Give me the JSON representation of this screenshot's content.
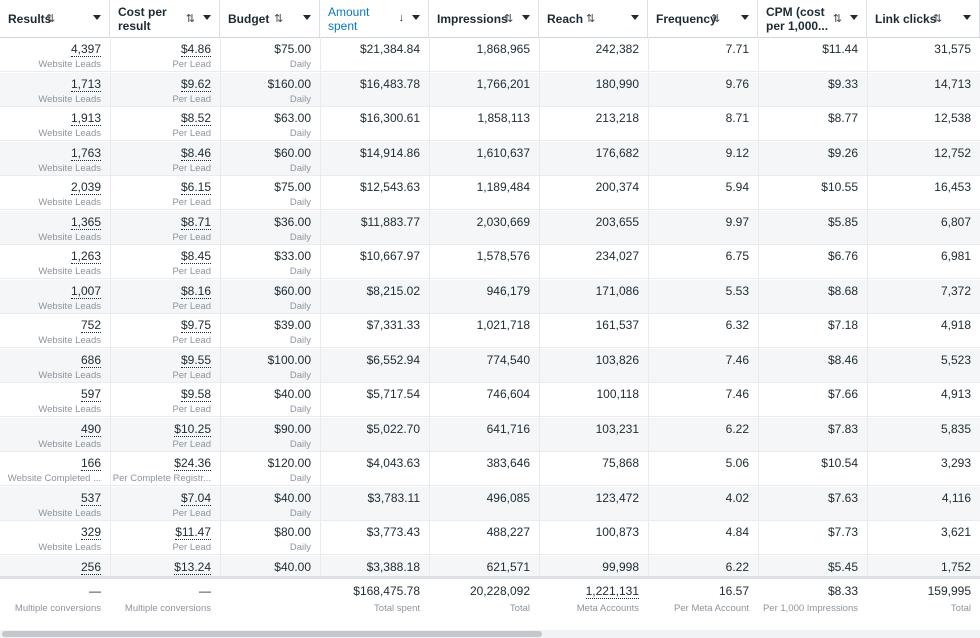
{
  "columns": [
    {
      "key": "results",
      "label": "Results",
      "sort": "⇅",
      "caret": true,
      "active": false
    },
    {
      "key": "cpr",
      "label": "Cost per result",
      "sort": "⇅",
      "caret": true,
      "active": false
    },
    {
      "key": "budget",
      "label": "Budget",
      "sort": "⇅",
      "caret": true,
      "active": false
    },
    {
      "key": "amount",
      "label": "Amount spent",
      "sort": "↓",
      "caret": true,
      "active": true
    },
    {
      "key": "impr",
      "label": "Impressions",
      "sort": "⇅",
      "caret": true,
      "active": false
    },
    {
      "key": "reach",
      "label": "Reach",
      "sort": "⇅",
      "caret": true,
      "active": false
    },
    {
      "key": "freq",
      "label": "Frequency",
      "sort": "⇅",
      "caret": true,
      "active": false
    },
    {
      "key": "cpm",
      "label": "CPM (cost per 1,000...",
      "sort": "⇅",
      "caret": true,
      "active": false
    },
    {
      "key": "clicks",
      "label": "Link clicks",
      "sort": "⇅",
      "caret": true,
      "active": false
    }
  ],
  "rows": [
    {
      "results": "4,397",
      "results_sub": "Website Leads",
      "cpr": "$4.86",
      "cpr_sub": "Per Lead",
      "budget": "$75.00",
      "budget_sub": "Daily",
      "amount": "$21,384.84",
      "impr": "1,868,965",
      "reach": "242,382",
      "freq": "7.71",
      "cpm": "$11.44",
      "clicks": "31,575"
    },
    {
      "results": "1,713",
      "results_sub": "Website Leads",
      "cpr": "$9.62",
      "cpr_sub": "Per Lead",
      "budget": "$160.00",
      "budget_sub": "Daily",
      "amount": "$16,483.78",
      "impr": "1,766,201",
      "reach": "180,990",
      "freq": "9.76",
      "cpm": "$9.33",
      "clicks": "14,713"
    },
    {
      "results": "1,913",
      "results_sub": "Website Leads",
      "cpr": "$8.52",
      "cpr_sub": "Per Lead",
      "budget": "$63.00",
      "budget_sub": "Daily",
      "amount": "$16,300.61",
      "impr": "1,858,113",
      "reach": "213,218",
      "freq": "8.71",
      "cpm": "$8.77",
      "clicks": "12,538"
    },
    {
      "results": "1,763",
      "results_sub": "Website Leads",
      "cpr": "$8.46",
      "cpr_sub": "Per Lead",
      "budget": "$60.00",
      "budget_sub": "Daily",
      "amount": "$14,914.86",
      "impr": "1,610,637",
      "reach": "176,682",
      "freq": "9.12",
      "cpm": "$9.26",
      "clicks": "12,752"
    },
    {
      "results": "2,039",
      "results_sub": "Website Leads",
      "cpr": "$6.15",
      "cpr_sub": "Per Lead",
      "budget": "$75.00",
      "budget_sub": "Daily",
      "amount": "$12,543.63",
      "impr": "1,189,484",
      "reach": "200,374",
      "freq": "5.94",
      "cpm": "$10.55",
      "clicks": "16,453"
    },
    {
      "results": "1,365",
      "results_sub": "Website Leads",
      "cpr": "$8.71",
      "cpr_sub": "Per Lead",
      "budget": "$36.00",
      "budget_sub": "Daily",
      "amount": "$11,883.77",
      "impr": "2,030,669",
      "reach": "203,655",
      "freq": "9.97",
      "cpm": "$5.85",
      "clicks": "6,807"
    },
    {
      "results": "1,263",
      "results_sub": "Website Leads",
      "cpr": "$8.45",
      "cpr_sub": "Per Lead",
      "budget": "$33.00",
      "budget_sub": "Daily",
      "amount": "$10,667.97",
      "impr": "1,578,576",
      "reach": "234,027",
      "freq": "6.75",
      "cpm": "$6.76",
      "clicks": "6,981"
    },
    {
      "results": "1,007",
      "results_sub": "Website Leads",
      "cpr": "$8.16",
      "cpr_sub": "Per Lead",
      "budget": "$60.00",
      "budget_sub": "Daily",
      "amount": "$8,215.02",
      "impr": "946,179",
      "reach": "171,086",
      "freq": "5.53",
      "cpm": "$8.68",
      "clicks": "7,372"
    },
    {
      "results": "752",
      "results_sub": "Website Leads",
      "cpr": "$9.75",
      "cpr_sub": "Per Lead",
      "budget": "$39.00",
      "budget_sub": "Daily",
      "amount": "$7,331.33",
      "impr": "1,021,718",
      "reach": "161,537",
      "freq": "6.32",
      "cpm": "$7.18",
      "clicks": "4,918"
    },
    {
      "results": "686",
      "results_sub": "Website Leads",
      "cpr": "$9.55",
      "cpr_sub": "Per Lead",
      "budget": "$100.00",
      "budget_sub": "Daily",
      "amount": "$6,552.94",
      "impr": "774,540",
      "reach": "103,826",
      "freq": "7.46",
      "cpm": "$8.46",
      "clicks": "5,523"
    },
    {
      "results": "597",
      "results_sub": "Website Leads",
      "cpr": "$9.58",
      "cpr_sub": "Per Lead",
      "budget": "$40.00",
      "budget_sub": "Daily",
      "amount": "$5,717.54",
      "impr": "746,604",
      "reach": "100,118",
      "freq": "7.46",
      "cpm": "$7.66",
      "clicks": "4,913"
    },
    {
      "results": "490",
      "results_sub": "Website Leads",
      "cpr": "$10.25",
      "cpr_sub": "Per Lead",
      "budget": "$90.00",
      "budget_sub": "Daily",
      "amount": "$5,022.70",
      "impr": "641,716",
      "reach": "103,231",
      "freq": "6.22",
      "cpm": "$7.83",
      "clicks": "5,835"
    },
    {
      "results": "166",
      "results_sub": "Website Completed ...",
      "cpr": "$24.36",
      "cpr_sub": "Per Complete Registr...",
      "budget": "$120.00",
      "budget_sub": "Daily",
      "amount": "$4,043.63",
      "impr": "383,646",
      "reach": "75,868",
      "freq": "5.06",
      "cpm": "$10.54",
      "clicks": "3,293"
    },
    {
      "results": "537",
      "results_sub": "Website Leads",
      "cpr": "$7.04",
      "cpr_sub": "Per Lead",
      "budget": "$40.00",
      "budget_sub": "Daily",
      "amount": "$3,783.11",
      "impr": "496,085",
      "reach": "123,472",
      "freq": "4.02",
      "cpm": "$7.63",
      "clicks": "4,116"
    },
    {
      "results": "329",
      "results_sub": "Website Leads",
      "cpr": "$11.47",
      "cpr_sub": "Per Lead",
      "budget": "$80.00",
      "budget_sub": "Daily",
      "amount": "$3,773.43",
      "impr": "488,227",
      "reach": "100,873",
      "freq": "4.84",
      "cpm": "$7.73",
      "clicks": "3,621"
    },
    {
      "results": "256",
      "results_sub": "",
      "cpr": "$13.24",
      "cpr_sub": "",
      "budget": "$40.00",
      "budget_sub": "",
      "amount": "$3,388.18",
      "impr": "621,571",
      "reach": "99,998",
      "freq": "6.22",
      "cpm": "$5.45",
      "clicks": "1,752"
    }
  ],
  "totals": {
    "results": "—",
    "results_sub": "Multiple conversions",
    "cpr": "—",
    "cpr_sub": "Multiple conversions",
    "budget": "",
    "budget_sub": "",
    "amount": "$168,475.78",
    "amount_sub": "Total spent",
    "impr": "20,228,092",
    "impr_sub": "Total",
    "reach": "1,221,131",
    "reach_sub": "Meta Accounts",
    "freq": "16.57",
    "freq_sub": "Per Meta Account",
    "cpm": "$8.33",
    "cpm_sub": "Per 1,000 Impressions",
    "clicks": "159,995",
    "clicks_sub": "Total"
  },
  "colors": {
    "accent": "#0a78be",
    "text": "#1c2b33",
    "muted": "#8d949e"
  }
}
